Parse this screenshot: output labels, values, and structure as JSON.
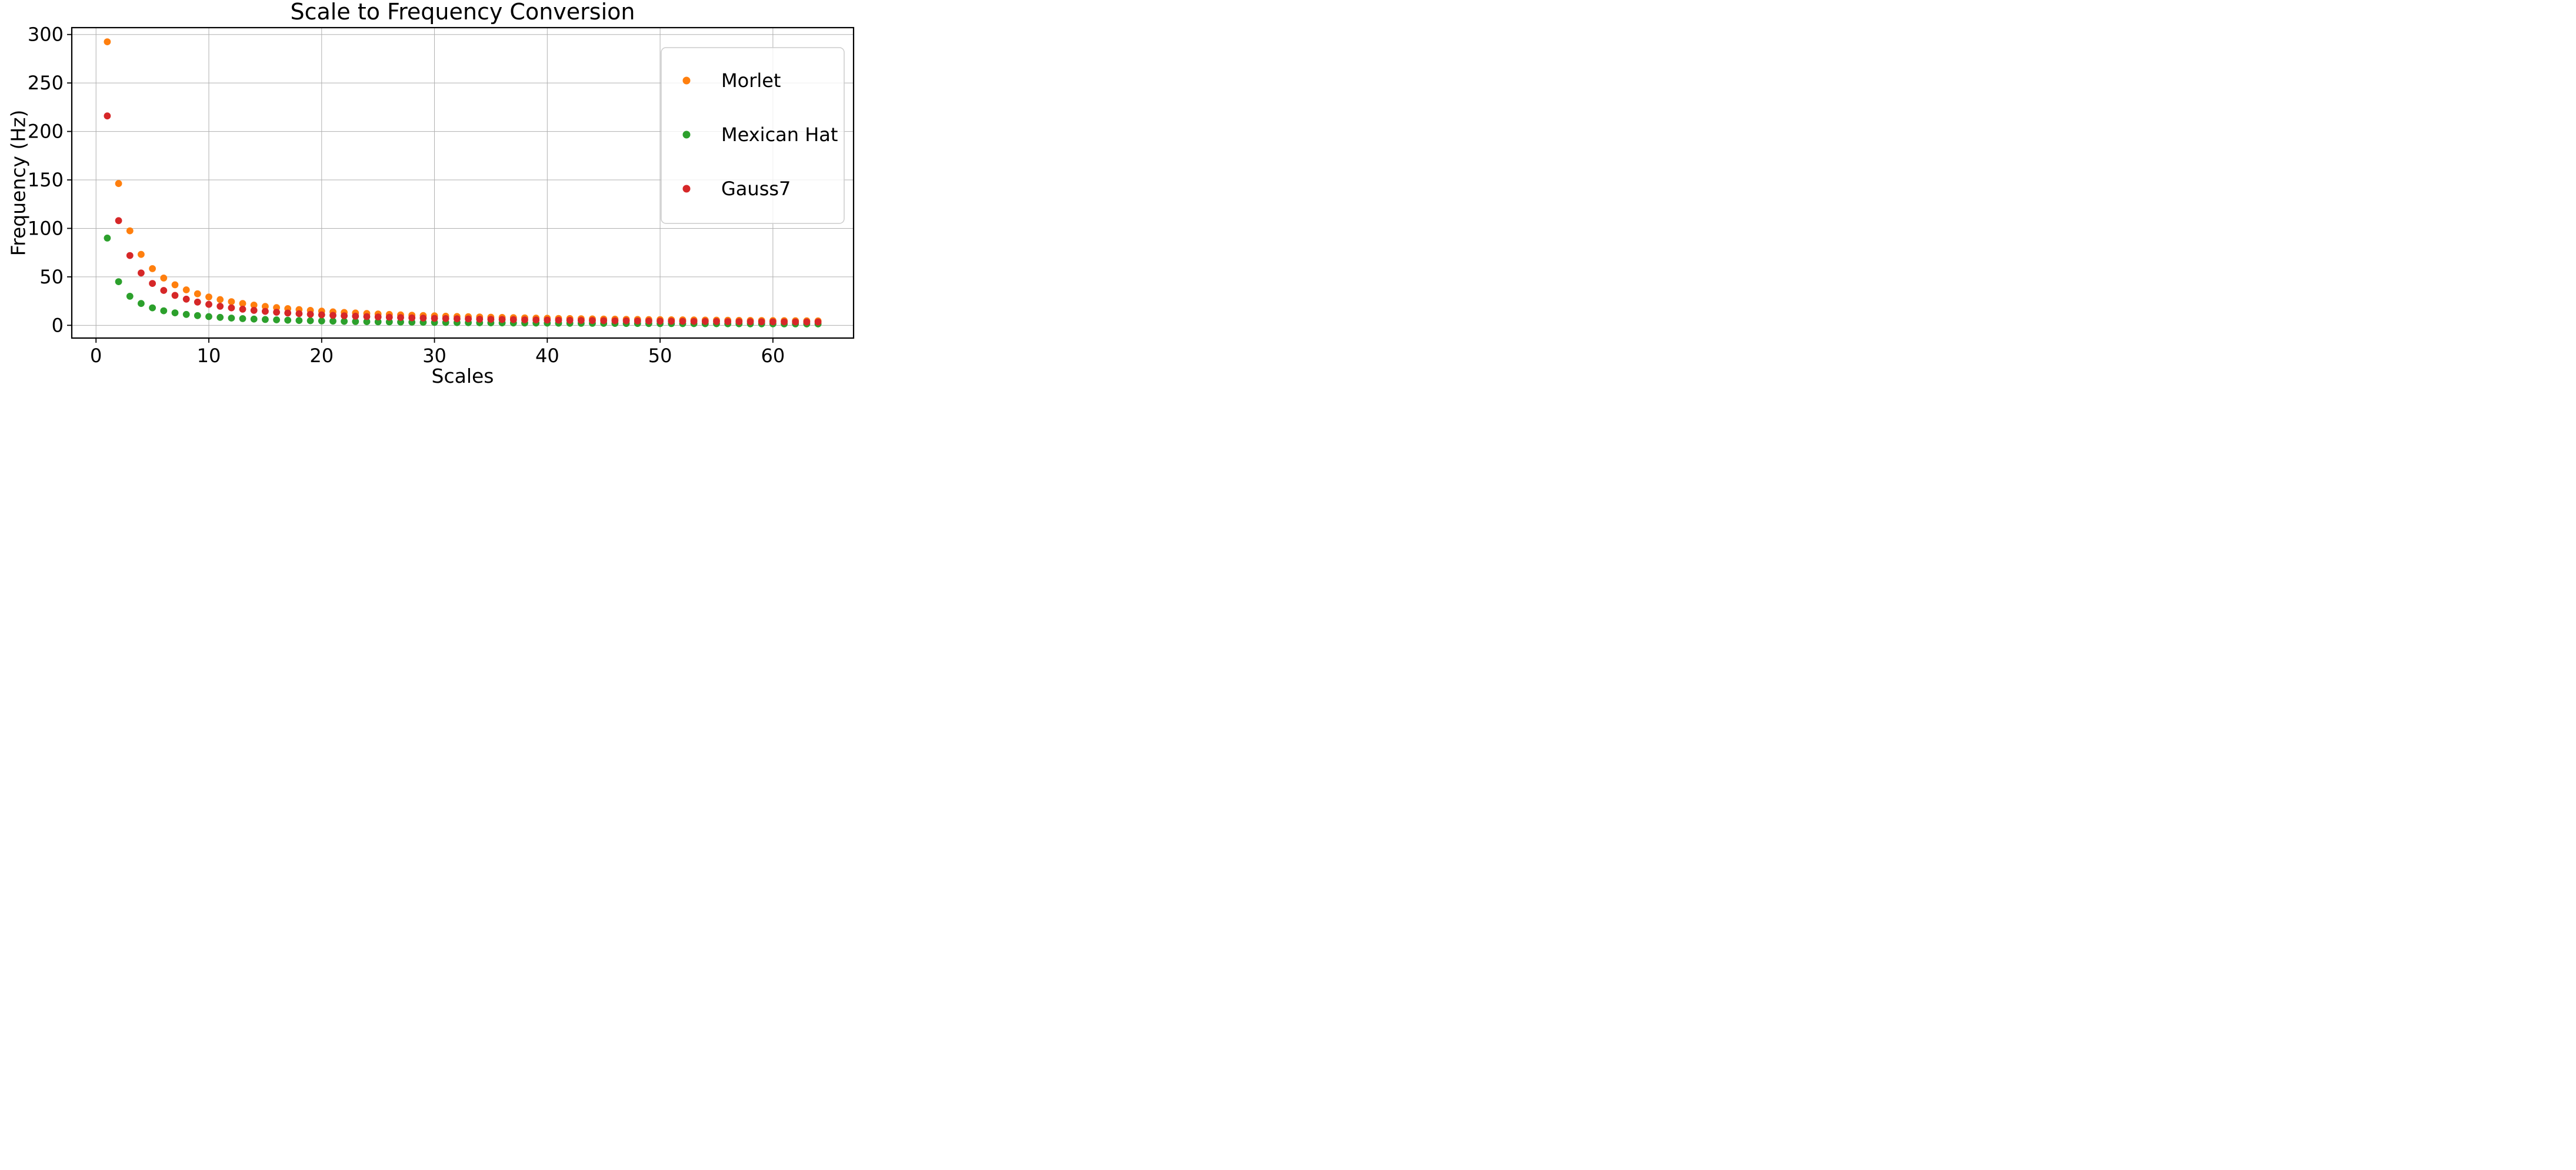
{
  "chart_data": {
    "type": "scatter",
    "title": "Scale to Frequency Conversion",
    "xlabel": "Scales",
    "ylabel": "Frequency (Hz)",
    "x": [
      1,
      2,
      3,
      4,
      5,
      6,
      7,
      8,
      9,
      10,
      11,
      12,
      13,
      14,
      15,
      16,
      17,
      18,
      19,
      20,
      21,
      22,
      23,
      24,
      25,
      26,
      27,
      28,
      29,
      30,
      31,
      32,
      33,
      34,
      35,
      36,
      37,
      38,
      39,
      40,
      41,
      42,
      43,
      44,
      45,
      46,
      47,
      48,
      49,
      50,
      51,
      52,
      53,
      54,
      55,
      56,
      57,
      58,
      59,
      60,
      61,
      62,
      63,
      64
    ],
    "series": [
      {
        "name": "Morlet",
        "color": "#ff7f0e",
        "values": [
          292.5,
          146.25,
          97.5,
          73.13,
          58.5,
          48.75,
          41.79,
          36.56,
          32.5,
          29.25,
          26.59,
          24.38,
          22.5,
          20.89,
          19.5,
          18.28,
          17.21,
          16.25,
          15.39,
          14.63,
          13.93,
          13.3,
          12.72,
          12.19,
          11.7,
          11.25,
          10.83,
          10.45,
          10.09,
          9.75,
          9.44,
          9.14,
          8.86,
          8.6,
          8.36,
          8.13,
          7.91,
          7.7,
          7.5,
          7.31,
          7.13,
          6.96,
          6.8,
          6.65,
          6.5,
          6.36,
          6.22,
          6.09,
          5.97,
          5.85,
          5.74,
          5.63,
          5.52,
          5.42,
          5.32,
          5.22,
          5.13,
          5.04,
          4.96,
          4.88,
          4.8,
          4.72,
          4.64,
          4.57
        ]
      },
      {
        "name": "Mexican Hat",
        "color": "#2ca02c",
        "values": [
          90,
          45,
          30,
          22.5,
          18,
          15,
          12.86,
          11.25,
          10,
          9,
          8.18,
          7.5,
          6.92,
          6.43,
          6,
          5.63,
          5.29,
          5,
          4.74,
          4.5,
          4.29,
          4.09,
          3.91,
          3.75,
          3.6,
          3.46,
          3.33,
          3.21,
          3.1,
          3,
          2.9,
          2.81,
          2.73,
          2.65,
          2.57,
          2.5,
          2.43,
          2.37,
          2.31,
          2.25,
          2.2,
          2.14,
          2.09,
          2.05,
          2,
          1.96,
          1.91,
          1.88,
          1.84,
          1.8,
          1.76,
          1.73,
          1.7,
          1.67,
          1.64,
          1.61,
          1.58,
          1.55,
          1.53,
          1.5,
          1.48,
          1.45,
          1.43,
          1.41
        ]
      },
      {
        "name": "Gauss7",
        "color": "#d62728",
        "values": [
          216,
          108,
          72,
          54,
          43.2,
          36,
          30.86,
          27,
          24,
          21.6,
          19.64,
          18,
          16.62,
          15.43,
          14.4,
          13.5,
          12.71,
          12,
          11.37,
          10.8,
          10.29,
          9.82,
          9.39,
          9,
          8.64,
          8.31,
          8,
          7.71,
          7.45,
          7.2,
          6.97,
          6.75,
          6.55,
          6.35,
          6.17,
          6,
          5.84,
          5.68,
          5.54,
          5.4,
          5.27,
          5.14,
          5.02,
          4.91,
          4.8,
          4.7,
          4.6,
          4.5,
          4.41,
          4.32,
          4.24,
          4.15,
          4.08,
          4,
          3.93,
          3.86,
          3.79,
          3.72,
          3.66,
          3.6,
          3.54,
          3.48,
          3.43,
          3.38
        ]
      }
    ],
    "xlim": [
      -2.15,
      67.15
    ],
    "ylim": [
      -13.15,
      307.1
    ],
    "xticks": [
      0,
      10,
      20,
      30,
      40,
      50,
      60
    ],
    "yticks": [
      0,
      50,
      100,
      150,
      200,
      250,
      300
    ],
    "grid": true,
    "grid_color": "#b0b0b0",
    "spine_color": "#000000",
    "legend": {
      "position": "upper right",
      "entries": [
        "Morlet",
        "Mexican Hat",
        "Gauss7"
      ],
      "border_color": "#cccccc",
      "background": "rgba(255,255,255,0.8)"
    }
  }
}
